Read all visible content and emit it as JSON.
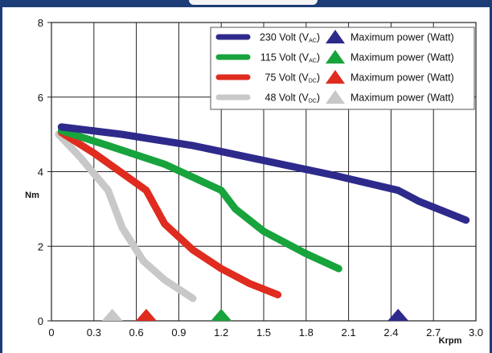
{
  "chart_data": {
    "type": "line",
    "xlabel": "Krpm",
    "ylabel": "Nm",
    "xlim": [
      0,
      3.0
    ],
    "ylim": [
      0,
      8
    ],
    "x_ticks": [
      "0",
      "0.3",
      "0.6",
      "0.9",
      "1.2",
      "1.5",
      "1.8",
      "2.1",
      "2.4",
      "2.7",
      "3.0"
    ],
    "y_ticks": [
      "0",
      "2",
      "4",
      "6",
      "8"
    ],
    "grid": true,
    "legend_position": "top-right",
    "series": [
      {
        "name": "230 Volt (VAC)",
        "label_main": "230 Volt (V",
        "label_sub": "AC",
        "label_end": ")",
        "marker_label": "Maximum power (Watt)",
        "color": "#2e2a8c",
        "x": [
          0.07,
          0.5,
          1.0,
          1.5,
          2.0,
          2.45,
          2.6,
          2.93
        ],
        "y": [
          5.2,
          5.0,
          4.7,
          4.3,
          3.9,
          3.5,
          3.2,
          2.7
        ],
        "max_power_x": 2.45
      },
      {
        "name": "115 Volt (VAC)",
        "label_main": "115 Volt (V",
        "label_sub": "AC",
        "label_end": ")",
        "marker_label": "Maximum power (Watt)",
        "color": "#18a33c",
        "x": [
          0.07,
          0.4,
          0.8,
          1.2,
          1.3,
          1.5,
          1.8,
          2.03
        ],
        "y": [
          5.1,
          4.7,
          4.2,
          3.5,
          3.0,
          2.4,
          1.8,
          1.4
        ],
        "max_power_x": 1.2
      },
      {
        "name": "75 Volt (VDC)",
        "label_main": "75 Volt (V",
        "label_sub": "DC",
        "label_end": ")",
        "marker_label": "Maximum power (Watt)",
        "color": "#e02b1f",
        "x": [
          0.07,
          0.3,
          0.67,
          0.8,
          1.0,
          1.2,
          1.4,
          1.6
        ],
        "y": [
          5.05,
          4.5,
          3.5,
          2.6,
          1.9,
          1.4,
          1.0,
          0.7
        ],
        "max_power_x": 0.67
      },
      {
        "name": "48 Volt (VDC)",
        "label_main": "48 Volt (V",
        "label_sub": "DC",
        "label_end": ")",
        "marker_label": "Maximum power (Watt)",
        "color": "#c8c8c8",
        "x": [
          0.05,
          0.2,
          0.4,
          0.5,
          0.65,
          0.8,
          1.0
        ],
        "y": [
          5.0,
          4.4,
          3.5,
          2.5,
          1.6,
          1.1,
          0.6
        ],
        "max_power_x": 0.43
      }
    ]
  }
}
